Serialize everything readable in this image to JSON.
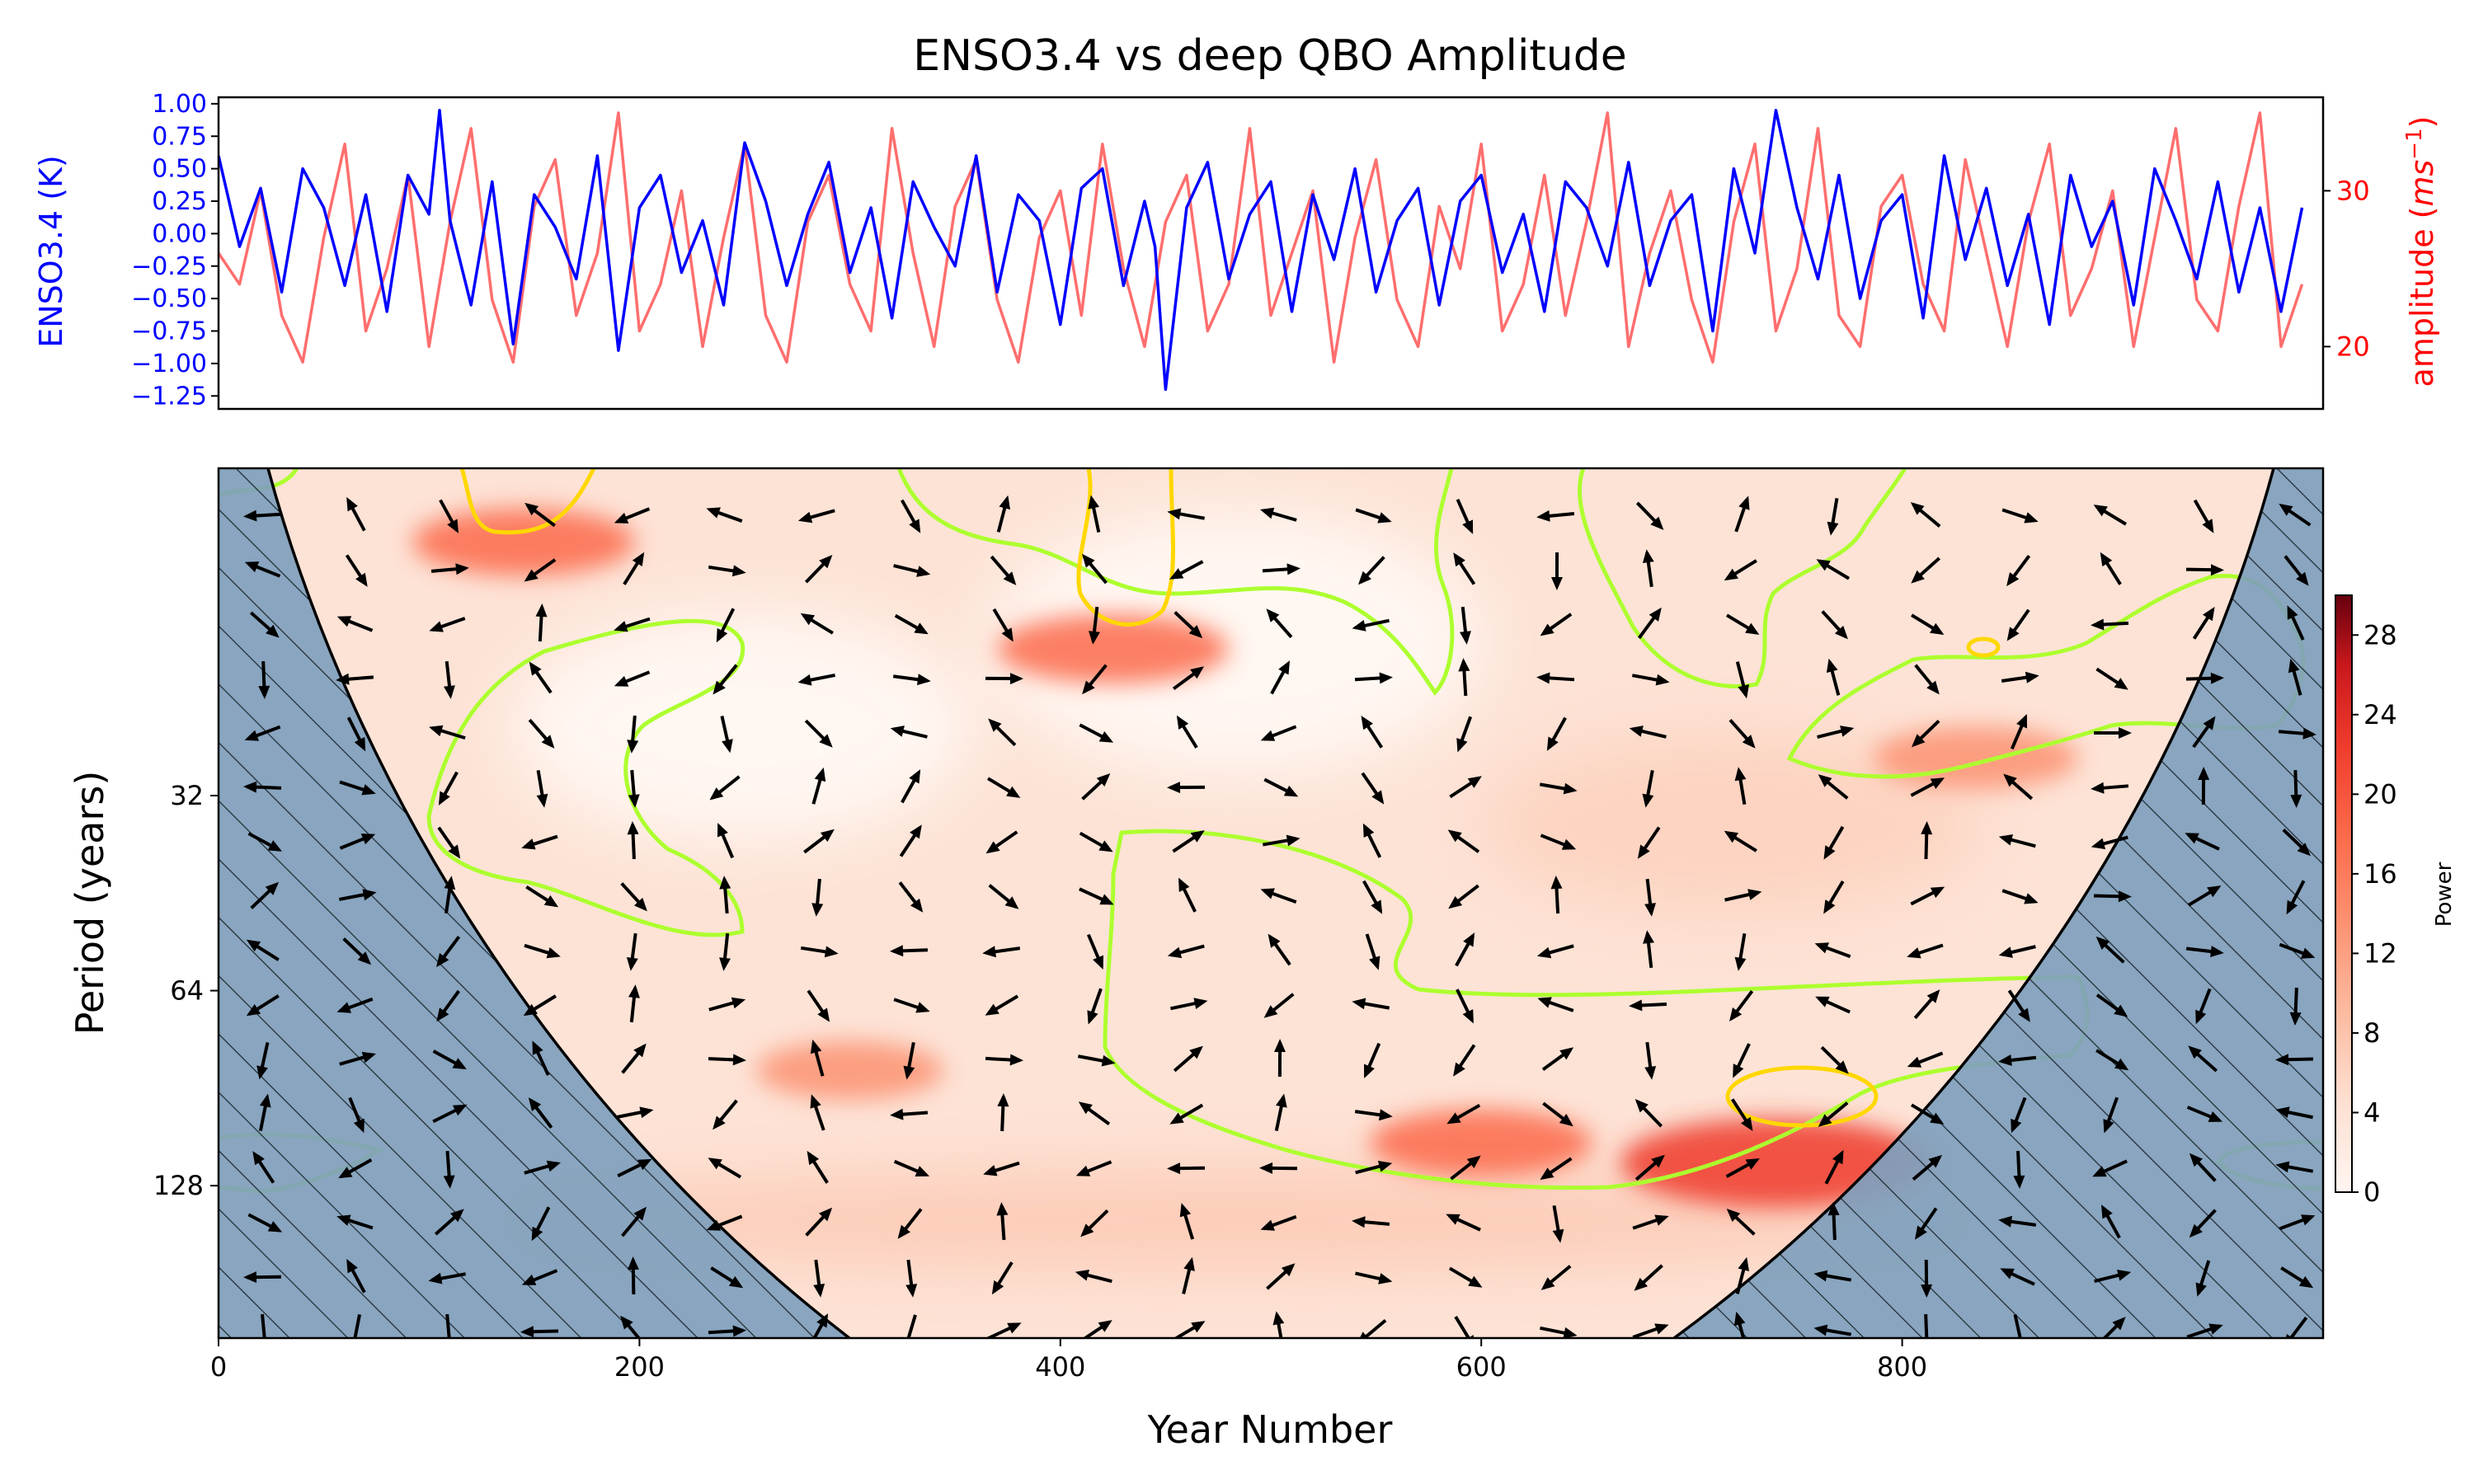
{
  "title": "ENSO3.4 vs deep QBO Amplitude",
  "colors": {
    "enso": "#0000ff",
    "qbo": "#ff6666",
    "coi": "#7f9fbd",
    "contour_green": "#adff2f",
    "contour_yellow": "#ffd700",
    "arrow": "#000000"
  },
  "chart_data": [
    {
      "type": "line",
      "title": "ENSO3.4 vs deep QBO Amplitude",
      "xlim": [
        0,
        1000
      ],
      "series": [
        {
          "name": "ENSO3.4 (K)",
          "axis": "left",
          "x": [
            0,
            10,
            20,
            30,
            40,
            50,
            60,
            70,
            80,
            90,
            100,
            105,
            110,
            120,
            130,
            140,
            150,
            160,
            170,
            180,
            190,
            200,
            210,
            220,
            230,
            240,
            250,
            260,
            270,
            280,
            290,
            300,
            310,
            320,
            330,
            340,
            350,
            360,
            370,
            380,
            390,
            400,
            410,
            420,
            430,
            440,
            445,
            450,
            460,
            470,
            480,
            490,
            500,
            510,
            520,
            530,
            540,
            550,
            560,
            570,
            580,
            590,
            600,
            610,
            620,
            630,
            640,
            650,
            660,
            670,
            680,
            690,
            700,
            710,
            720,
            730,
            740,
            750,
            760,
            770,
            780,
            790,
            800,
            810,
            820,
            830,
            840,
            850,
            860,
            870,
            880,
            890,
            900,
            910,
            920,
            930,
            940,
            950,
            960,
            970,
            980,
            990
          ],
          "values": [
            0.6,
            -0.1,
            0.35,
            -0.45,
            0.5,
            0.2,
            -0.4,
            0.3,
            -0.6,
            0.45,
            0.15,
            0.95,
            0.1,
            -0.55,
            0.4,
            -0.85,
            0.3,
            0.05,
            -0.35,
            0.6,
            -0.9,
            0.2,
            0.45,
            -0.3,
            0.1,
            -0.55,
            0.7,
            0.25,
            -0.4,
            0.15,
            0.55,
            -0.3,
            0.2,
            -0.65,
            0.4,
            0.05,
            -0.25,
            0.6,
            -0.45,
            0.3,
            0.1,
            -0.7,
            0.35,
            0.5,
            -0.4,
            0.25,
            -0.1,
            -1.2,
            0.2,
            0.55,
            -0.35,
            0.15,
            0.4,
            -0.6,
            0.3,
            -0.2,
            0.5,
            -0.45,
            0.1,
            0.35,
            -0.55,
            0.25,
            0.45,
            -0.3,
            0.15,
            -0.6,
            0.4,
            0.2,
            -0.25,
            0.55,
            -0.4,
            0.1,
            0.3,
            -0.75,
            0.5,
            -0.15,
            0.95,
            0.2,
            -0.35,
            0.45,
            -0.5,
            0.1,
            0.3,
            -0.65,
            0.6,
            -0.2,
            0.35,
            -0.4,
            0.15,
            -0.7,
            0.45,
            -0.1,
            0.25,
            -0.55,
            0.5,
            0.1,
            -0.35,
            0.4,
            -0.45,
            0.2,
            -0.6,
            0.2
          ]
        },
        {
          "name": "amplitude (ms⁻¹)",
          "axis": "right",
          "x": [
            0,
            10,
            20,
            30,
            40,
            50,
            60,
            70,
            80,
            90,
            100,
            110,
            120,
            130,
            140,
            150,
            160,
            170,
            180,
            190,
            200,
            210,
            220,
            230,
            240,
            250,
            260,
            270,
            280,
            290,
            300,
            310,
            320,
            330,
            340,
            350,
            360,
            370,
            380,
            390,
            400,
            410,
            420,
            430,
            440,
            450,
            460,
            470,
            480,
            490,
            500,
            510,
            520,
            530,
            540,
            550,
            560,
            570,
            580,
            590,
            600,
            610,
            620,
            630,
            640,
            650,
            660,
            670,
            680,
            690,
            700,
            710,
            720,
            730,
            740,
            750,
            760,
            770,
            780,
            790,
            800,
            810,
            820,
            830,
            840,
            850,
            860,
            870,
            880,
            890,
            900,
            910,
            920,
            930,
            940,
            950,
            960,
            970,
            980,
            990
          ],
          "values": [
            26,
            24,
            30,
            22,
            19,
            27,
            33,
            21,
            25,
            31,
            20,
            28,
            34,
            23,
            19,
            29,
            32,
            22,
            26,
            35,
            21,
            24,
            30,
            20,
            27,
            33,
            22,
            19,
            28,
            31,
            24,
            21,
            34,
            26,
            20,
            29,
            32,
            23,
            19,
            27,
            30,
            22,
            33,
            25,
            20,
            28,
            31,
            21,
            24,
            34,
            22,
            26,
            30,
            19,
            27,
            32,
            23,
            20,
            29,
            25,
            33,
            21,
            24,
            31,
            22,
            28,
            35,
            20,
            26,
            30,
            23,
            19,
            28,
            33,
            21,
            25,
            34,
            22,
            20,
            29,
            31,
            24,
            21,
            32,
            26,
            20,
            28,
            33,
            22,
            25,
            30,
            20,
            27,
            34,
            23,
            21,
            29,
            35,
            20,
            24
          ]
        }
      ],
      "y_left": {
        "label": "ENSO3.4 (K)",
        "ylim": [
          -1.35,
          1.05
        ],
        "ticks": [
          "1.00",
          "0.75",
          "0.50",
          "0.25",
          "0.00",
          "−0.25",
          "−0.50",
          "−0.75",
          "−1.00",
          "−1.25"
        ]
      },
      "y_right": {
        "label": "amplitude",
        "unit_base": "ms",
        "unit_exp": "−1",
        "ylim": [
          16,
          36
        ],
        "ticks": [
          "30",
          "20"
        ]
      }
    },
    {
      "type": "heatmap",
      "xlabel": "Year Number",
      "ylabel": "Period (years)",
      "xlim": [
        0,
        1000
      ],
      "ylim": [
        10,
        220
      ],
      "yscale": "log2",
      "xticks": [
        "0",
        "200",
        "400",
        "600",
        "800"
      ],
      "yticks": [
        "32",
        "64",
        "128"
      ],
      "colorbar": {
        "label": "Power",
        "range": [
          0,
          30
        ],
        "ticks": [
          "0",
          "4",
          "8",
          "12",
          "16",
          "20",
          "24",
          "28"
        ]
      },
      "power_peaks": [
        {
          "year": 740,
          "period": 118,
          "power": 24
        },
        {
          "year": 600,
          "period": 110,
          "power": 14
        },
        {
          "year": 300,
          "period": 85,
          "power": 10
        },
        {
          "year": 425,
          "period": 19,
          "power": 15
        },
        {
          "year": 145,
          "period": 13,
          "power": 14
        },
        {
          "year": 835,
          "period": 28,
          "power": 12
        }
      ],
      "significance_green": [
        {
          "year": 20,
          "period": 130
        },
        {
          "year": 440,
          "period": 22
        },
        {
          "year": 700,
          "period": 90
        },
        {
          "year": 900,
          "period": 30
        }
      ],
      "significance_yellow": [
        {
          "year": 740,
          "period": 120
        },
        {
          "year": 425,
          "period": 18
        },
        {
          "year": 835,
          "period": 27
        }
      ]
    }
  ]
}
